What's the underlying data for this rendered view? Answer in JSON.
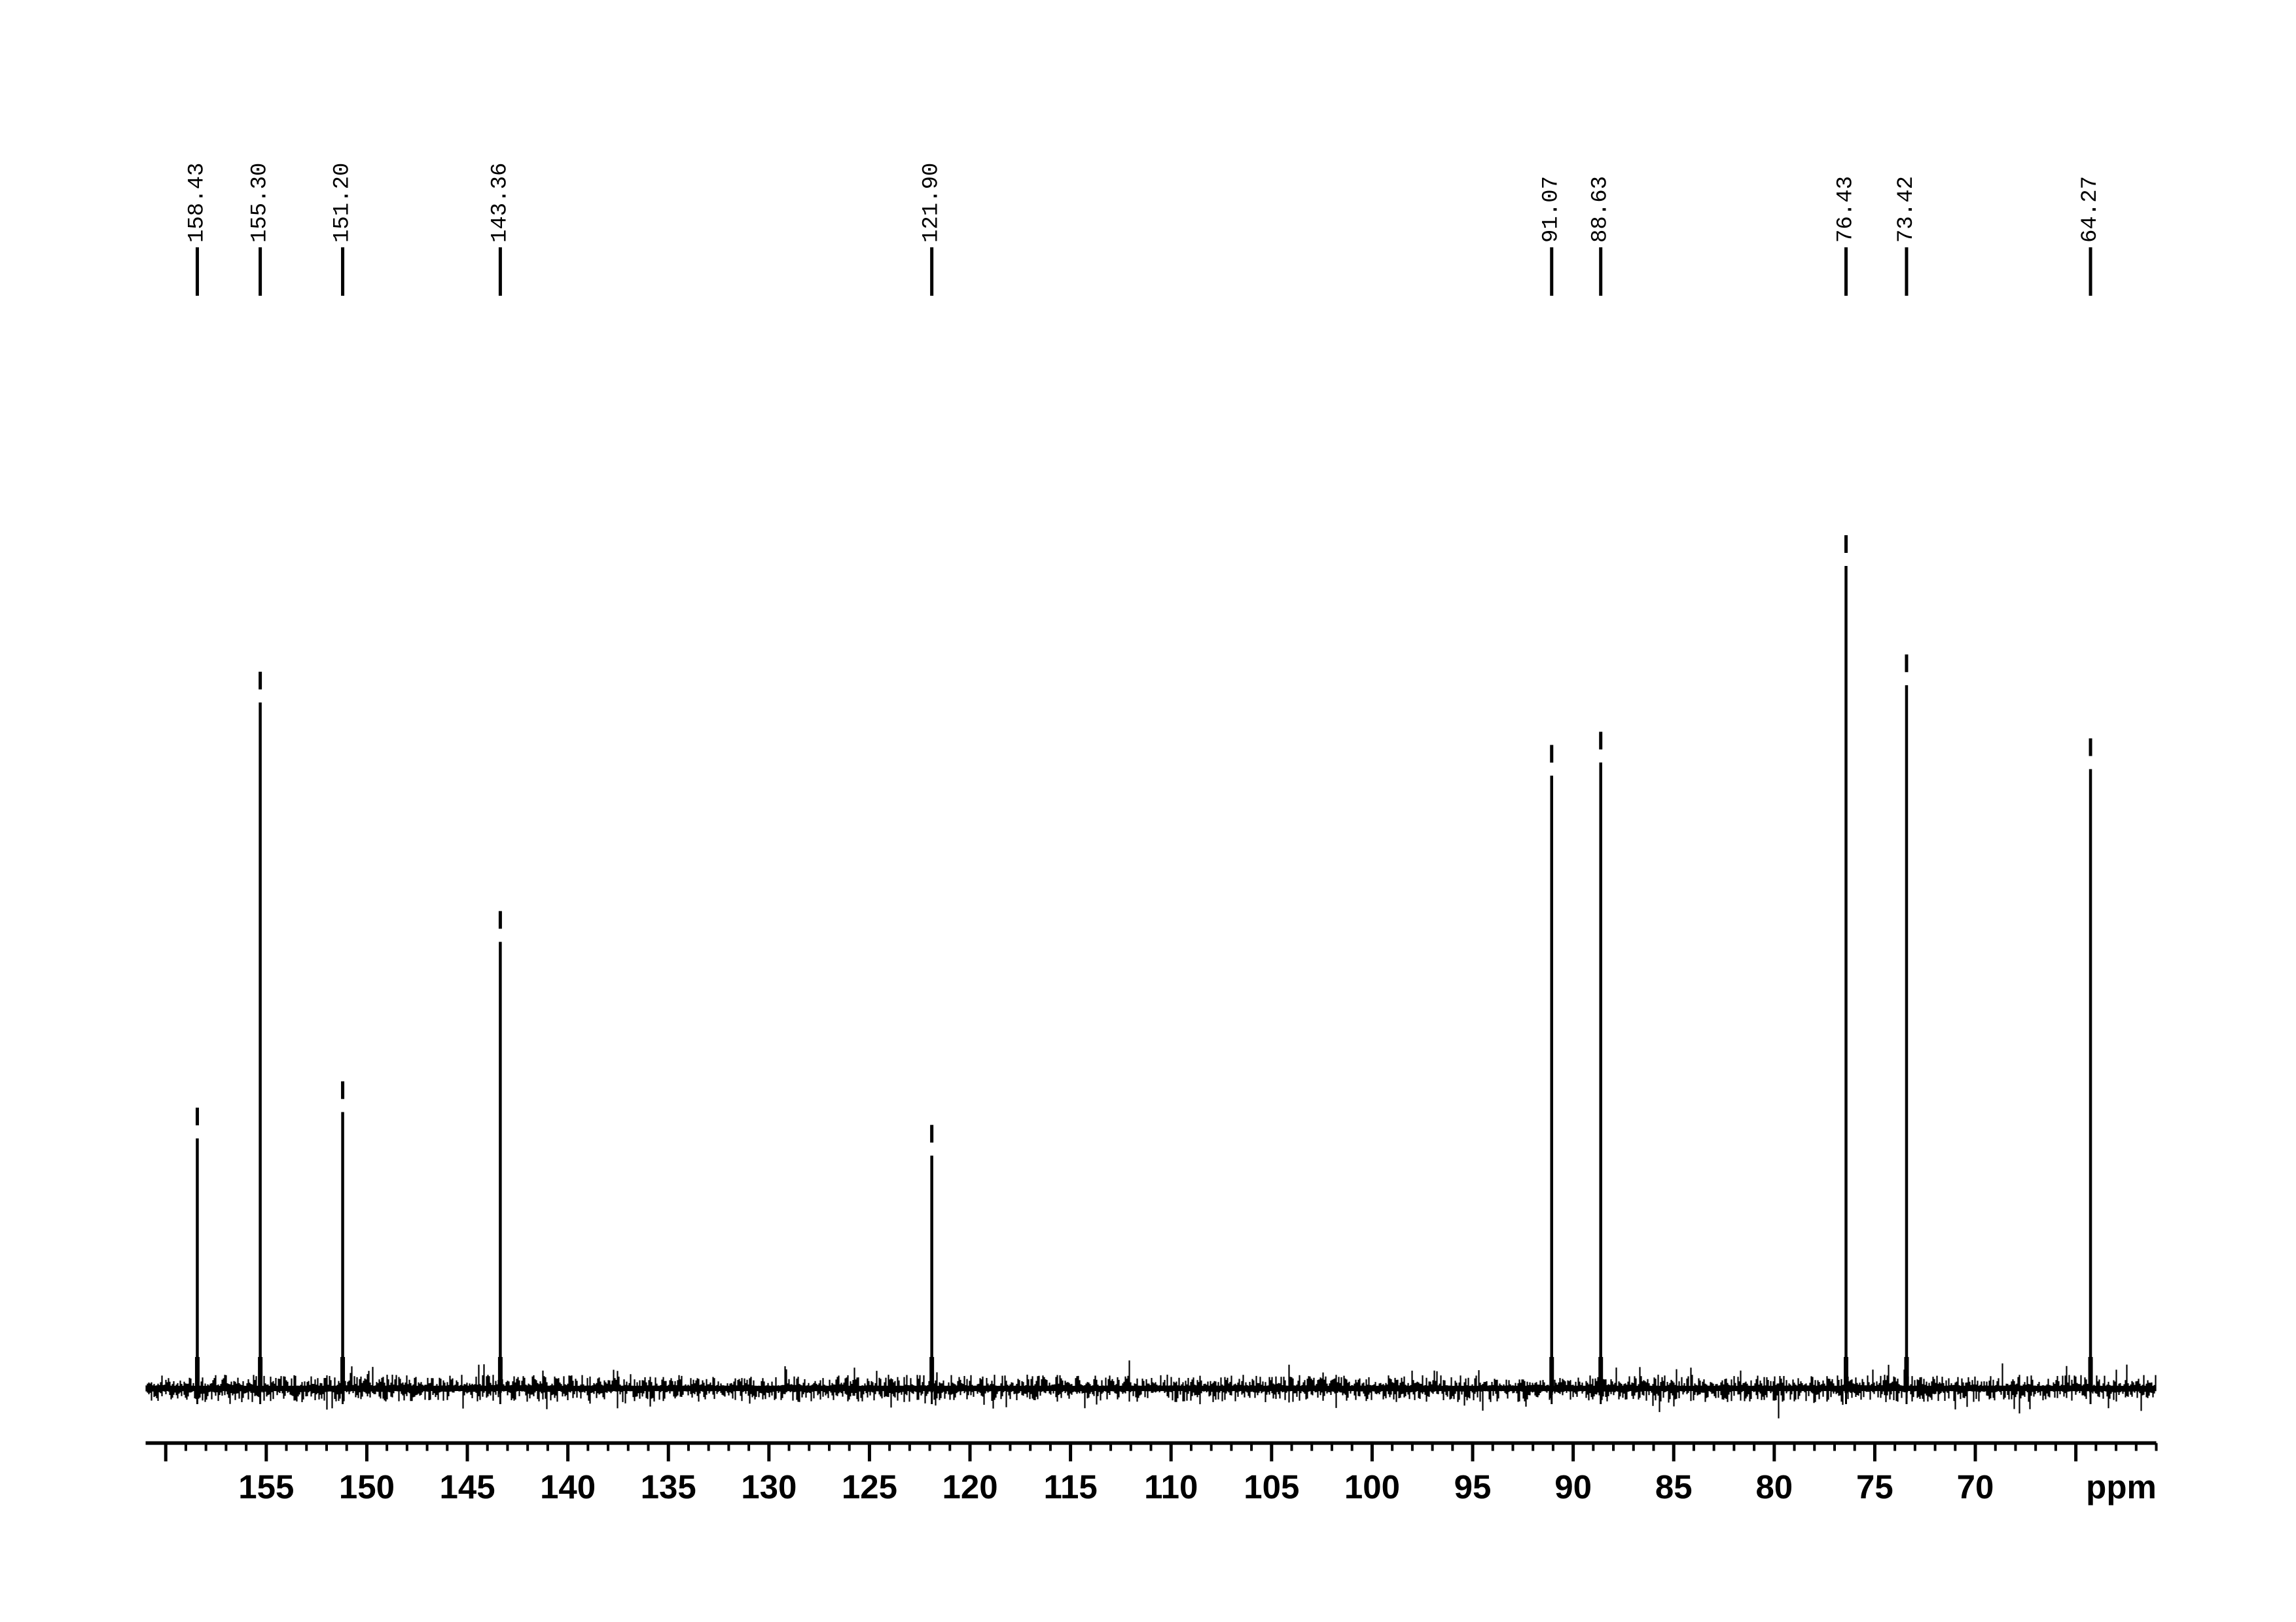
{
  "figure": {
    "background": "#ffffff",
    "ink": "#000000"
  },
  "chart_data": {
    "type": "line",
    "subtype": "13C-NMR-spectrum",
    "xlabel": "ppm",
    "ylabel": "",
    "grid": false,
    "legend": false,
    "x_axis": {
      "unit_label": "ppm",
      "range_left_ppm": 161,
      "range_right_ppm": 61,
      "major_tick_step_ppm": 5,
      "minor_tick_step_ppm": 1,
      "labeled_ticks": [
        155,
        150,
        145,
        140,
        135,
        130,
        125,
        120,
        115,
        110,
        105,
        100,
        95,
        90,
        85,
        80,
        75,
        70
      ]
    },
    "peaks": [
      {
        "ppm": 158.43,
        "label": "158.43",
        "intensity": 0.304
      },
      {
        "ppm": 155.3,
        "label": "155.30",
        "intensity": 0.834
      },
      {
        "ppm": 151.2,
        "label": "151.20",
        "intensity": 0.336
      },
      {
        "ppm": 143.36,
        "label": "143.36",
        "intensity": 0.543
      },
      {
        "ppm": 121.9,
        "label": "121.90",
        "intensity": 0.283
      },
      {
        "ppm": 91.07,
        "label": "91.07",
        "intensity": 0.745
      },
      {
        "ppm": 88.63,
        "label": "88.63",
        "intensity": 0.761
      },
      {
        "ppm": 76.43,
        "label": "76.43",
        "intensity": 1.0
      },
      {
        "ppm": 73.42,
        "label": "73.42",
        "intensity": 0.855
      },
      {
        "ppm": 64.27,
        "label": "64.27",
        "intensity": 0.753
      }
    ],
    "baseline_noise": {
      "present": true,
      "relative_amplitude": 0.02
    }
  }
}
